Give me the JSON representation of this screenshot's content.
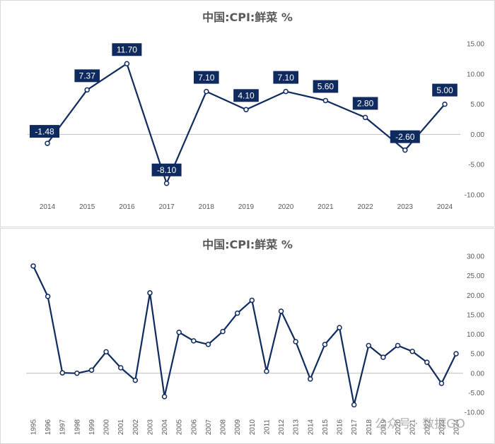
{
  "colors": {
    "line": "#0f2a5f",
    "label_bg": "#0f2a5f",
    "axis_text": "#595959",
    "zero_line": "#bfbfbf"
  },
  "watermark": "公众号 · 数据GO",
  "chart_data": [
    {
      "type": "line",
      "title": "中国:CPI:鲜菜 %",
      "categories": [
        "2014",
        "2015",
        "2016",
        "2017",
        "2018",
        "2019",
        "2020",
        "2021",
        "2022",
        "2023",
        "2024"
      ],
      "series": [
        {
          "values": [
            -1.48,
            7.37,
            11.7,
            -8.1,
            7.1,
            4.1,
            7.1,
            5.6,
            2.8,
            -2.6,
            5.0
          ]
        }
      ],
      "data_labels": [
        "-1.48",
        "7.37",
        "11.70",
        "-8.10",
        "7.10",
        "4.10",
        "7.10",
        "5.60",
        "2.80",
        "-2.60",
        "5.00"
      ],
      "y_ticks": [
        "15.00",
        "10.00",
        "5.00",
        "0.00",
        "-5.00",
        "-10.00"
      ],
      "ylim": [
        -10,
        15
      ],
      "y_axis_side": "right",
      "grid": false
    },
    {
      "type": "line",
      "title": "中国:CPI:鲜菜 %",
      "categories": [
        "1995",
        "1996",
        "1997",
        "1998",
        "1999",
        "2000",
        "2001",
        "2002",
        "2003",
        "2004",
        "2005",
        "2006",
        "2007",
        "2008",
        "2009",
        "2010",
        "2011",
        "2012",
        "2013",
        "2014",
        "2015",
        "2016",
        "2017",
        "2018",
        "2019",
        "2020",
        "2021",
        "2022",
        "2023",
        "2024"
      ],
      "series": [
        {
          "values": [
            27.5,
            19.7,
            0.1,
            0.0,
            0.8,
            5.5,
            1.4,
            -1.8,
            20.6,
            -6.0,
            10.5,
            8.3,
            7.4,
            10.7,
            15.4,
            18.7,
            0.5,
            15.9,
            8.1,
            -1.48,
            7.37,
            11.7,
            -8.1,
            7.1,
            4.1,
            7.1,
            5.6,
            2.8,
            -2.6,
            5.0
          ]
        }
      ],
      "y_ticks": [
        "30.00",
        "25.00",
        "20.00",
        "15.00",
        "10.00",
        "5.00",
        "0.00",
        "-5.00",
        "-10.00"
      ],
      "ylim": [
        -10,
        30
      ],
      "y_axis_side": "right",
      "grid": false
    }
  ]
}
